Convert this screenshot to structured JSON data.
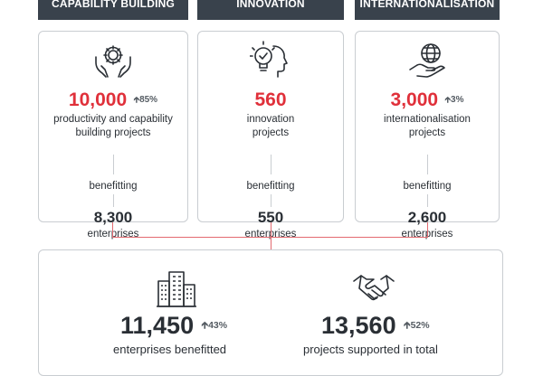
{
  "headers": [
    "CAPABILITY BUILDING",
    "INNOVATION",
    "INTERNATIONALISATION"
  ],
  "cards": [
    {
      "icon": "gear-hands-icon",
      "value": "10,000",
      "change": "85%",
      "desc_lines": [
        "productivity and capability",
        "building projects"
      ],
      "benefitting": "benefitting",
      "enterprises_value": "8,300",
      "enterprises_label": "enterprises"
    },
    {
      "icon": "lightbulb-head-icon",
      "value": "560",
      "change": "",
      "desc_lines": [
        "innovation",
        "projects"
      ],
      "benefitting": "benefitting",
      "enterprises_value": "550",
      "enterprises_label": "enterprises"
    },
    {
      "icon": "globe-hand-icon",
      "value": "3,000",
      "change": "3%",
      "desc_lines": [
        "internationalisation",
        "projects"
      ],
      "benefitting": "benefitting",
      "enterprises_value": "2,600",
      "enterprises_label": "enterprises"
    }
  ],
  "totals": [
    {
      "icon": "buildings-icon",
      "value": "11,450",
      "change": "43%",
      "label": "enterprises benefitted"
    },
    {
      "icon": "handshake-icon",
      "value": "13,560",
      "change": "52%",
      "label": "projects supported in total"
    }
  ],
  "colors": {
    "accent": "#e0303a",
    "header_bg": "#39424c",
    "connector": "#e36a70",
    "border": "#c9cdd1"
  }
}
